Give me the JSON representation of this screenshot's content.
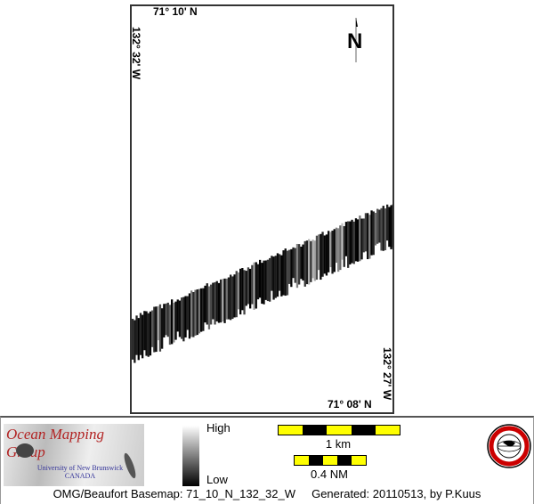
{
  "map": {
    "top_label": "71° 10' N",
    "bottom_label": "71° 08' N",
    "left_label": "132° 32' W",
    "right_label": "132° 27' W",
    "north_arrow": "N",
    "swath_colors": {
      "low": "#000000",
      "high": "#ffffff"
    }
  },
  "legend": {
    "high": "High",
    "low": "Low",
    "scale_km": "1 km",
    "scale_nm": "0.4 NM",
    "scale_colors": [
      "#ffff00",
      "#000000"
    ]
  },
  "logo": {
    "title": "Ocean Mapping Group",
    "university": "University of New Brunswick",
    "country": "CANADA",
    "title_color": "#b22222",
    "univ_color": "#333399"
  },
  "seal": {
    "text": "Geodesy and Geomatics Engineering UNB",
    "color": "#cc0000"
  },
  "footer": {
    "basemap": "OMG/Beaufort Basemap: 71_10_N_132_32_W",
    "generated": "Generated: 20110513, by P.Kuus"
  }
}
